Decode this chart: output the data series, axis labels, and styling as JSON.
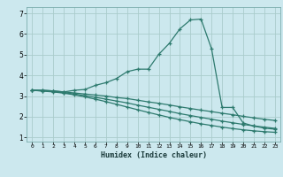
{
  "xlabel": "Humidex (Indice chaleur)",
  "bg_color": "#cce8ee",
  "grid_color": "#aacccc",
  "line_color": "#2d7a6e",
  "xlim": [
    -0.5,
    23.5
  ],
  "ylim": [
    0.8,
    7.3
  ],
  "xticks": [
    0,
    1,
    2,
    3,
    4,
    5,
    6,
    7,
    8,
    9,
    10,
    11,
    12,
    13,
    14,
    15,
    16,
    17,
    18,
    19,
    20,
    21,
    22,
    23
  ],
  "yticks": [
    1,
    2,
    3,
    4,
    5,
    6,
    7
  ],
  "line1_x": [
    0,
    1,
    2,
    3,
    4,
    5,
    6,
    7,
    8,
    9,
    10,
    11,
    12,
    13,
    14,
    15,
    16,
    17,
    18,
    19,
    20,
    21,
    22,
    23
  ],
  "line1_y": [
    3.28,
    3.28,
    3.25,
    3.2,
    3.28,
    3.32,
    3.52,
    3.65,
    3.85,
    4.18,
    4.3,
    4.3,
    5.02,
    5.55,
    6.25,
    6.68,
    6.72,
    5.28,
    2.45,
    2.45,
    1.7,
    1.55,
    1.45,
    1.4
  ],
  "line2_x": [
    0,
    1,
    2,
    3,
    4,
    5,
    6,
    7,
    8,
    9,
    10,
    11,
    12,
    13,
    14,
    15,
    16,
    17,
    18,
    19,
    20,
    21,
    22,
    23
  ],
  "line2_y": [
    3.28,
    3.28,
    3.25,
    3.2,
    3.15,
    3.1,
    3.05,
    3.0,
    2.93,
    2.88,
    2.8,
    2.72,
    2.65,
    2.57,
    2.48,
    2.4,
    2.32,
    2.25,
    2.17,
    2.1,
    2.02,
    1.95,
    1.88,
    1.82
  ],
  "line3_x": [
    0,
    1,
    2,
    3,
    4,
    5,
    6,
    7,
    8,
    9,
    10,
    11,
    12,
    13,
    14,
    15,
    16,
    17,
    18,
    19,
    20,
    21,
    22,
    23
  ],
  "line3_y": [
    3.28,
    3.25,
    3.22,
    3.16,
    3.1,
    3.02,
    2.94,
    2.85,
    2.76,
    2.67,
    2.56,
    2.46,
    2.36,
    2.26,
    2.15,
    2.06,
    1.97,
    1.88,
    1.79,
    1.71,
    1.63,
    1.56,
    1.5,
    1.44
  ],
  "line4_x": [
    0,
    1,
    2,
    3,
    4,
    5,
    6,
    7,
    8,
    9,
    10,
    11,
    12,
    13,
    14,
    15,
    16,
    17,
    18,
    19,
    20,
    21,
    22,
    23
  ],
  "line4_y": [
    3.28,
    3.24,
    3.2,
    3.14,
    3.06,
    2.96,
    2.85,
    2.73,
    2.6,
    2.47,
    2.34,
    2.21,
    2.09,
    1.97,
    1.86,
    1.76,
    1.66,
    1.58,
    1.5,
    1.43,
    1.37,
    1.32,
    1.28,
    1.25
  ]
}
